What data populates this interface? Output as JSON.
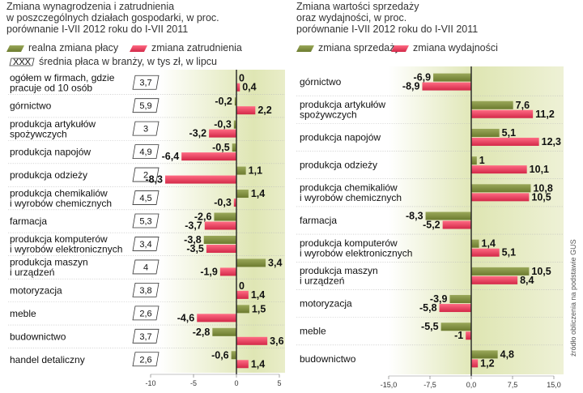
{
  "colors": {
    "green": "#7f8f3c",
    "green_light": "#c3cc8c",
    "red": "#e03b57",
    "red_light": "#f3a0b0",
    "band": "#ebefcf",
    "shade": "#dde4ad",
    "grid": "#e8e8e8"
  },
  "left_chart": {
    "title_lines": [
      "Zmiana wynagrodzenia i zatrudnienia",
      "w poszczególnych działach gospodarki, w proc.",
      "porównanie  I-VII 2012 roku do I-VII 2011"
    ],
    "legend": {
      "series1": "realna zmiana płacy",
      "series2": "zmiana zatrudnienia",
      "salary_box": "XXX",
      "salary_text": "średnia płaca w branży, w tys zł, w lipcu"
    },
    "chart_data": {
      "type": "bar",
      "orientation": "horizontal",
      "categories": [
        [
          "ogółem w firmach, gdzie",
          "pracuje od 10 osób"
        ],
        [
          "górnictwo"
        ],
        [
          "produkcja artykułów",
          "spożywczych"
        ],
        [
          "produkcja napojów"
        ],
        [
          "produkcja odzieży"
        ],
        [
          "produkcja chemikaliów",
          "i wyrobów chemicznych"
        ],
        [
          "farmacja"
        ],
        [
          "produkcja komputerów",
          "i wyrobów elektronicznych"
        ],
        [
          "produkcja maszyn",
          "i urządzeń"
        ],
        [
          "motoryzacja"
        ],
        [
          "meble"
        ],
        [
          "budownictwo"
        ],
        [
          "handel detaliczny"
        ]
      ],
      "salaries": [
        "3,7",
        "5,9",
        "3",
        "4,9",
        "2",
        "4,5",
        "5,3",
        "3,4",
        "4",
        "3,8",
        "2,6",
        "3,7",
        "2,6"
      ],
      "series": [
        {
          "name": "realna zmiana płacy",
          "values": [
            0,
            -0.2,
            -0.3,
            -0.5,
            1.1,
            1.4,
            -2.6,
            -3.8,
            3.4,
            0,
            1.5,
            -2.8,
            -0.6
          ],
          "labels": [
            "0",
            "-0,2",
            "-0,3",
            "-0,5",
            "1,1",
            "1,4",
            "-2,6",
            "-3,8",
            "3,4",
            "0",
            "1,5",
            "-2,8",
            "-0,6"
          ]
        },
        {
          "name": "zmiana zatrudnienia",
          "values": [
            0.4,
            2.2,
            -3.2,
            -6.4,
            -8.3,
            -0.3,
            -3.7,
            -3.5,
            -1.9,
            1.4,
            -4.6,
            3.6,
            1.4
          ],
          "labels": [
            "0,4",
            "2,2",
            "-3,2",
            "-6,4",
            "-8,3",
            "-0,3",
            "-3,7",
            "-3,5",
            "-1,9",
            "1,4",
            "-4,6",
            "3,6",
            "1,4"
          ]
        }
      ],
      "xlim": [
        -10,
        5
      ],
      "xticks": [
        "-10",
        "-5",
        "0",
        "5"
      ]
    }
  },
  "right_chart": {
    "title_lines": [
      "Zmiana wartości sprzedaży",
      "oraz wydajności, w proc.",
      "porównanie  I-VII 2012 roku do I-VII 2011"
    ],
    "legend": {
      "series1": "zmiana sprzedaży",
      "series2": "zmiana wydajności"
    },
    "chart_data": {
      "type": "bar",
      "orientation": "horizontal",
      "categories": [
        [
          "górnictwo"
        ],
        [
          "produkcja artykułów",
          "spożywczych"
        ],
        [
          "produkcja napojów"
        ],
        [
          "produkcja odzieży"
        ],
        [
          "produkcja chemikaliów",
          "i wyrobów chemicznych"
        ],
        [
          "farmacja"
        ],
        [
          "produkcja komputerów",
          "i wyrobów elektronicznych"
        ],
        [
          "produkcja maszyn",
          "i urządzeń"
        ],
        [
          "motoryzacja"
        ],
        [
          "meble"
        ],
        [
          "budownictwo"
        ]
      ],
      "series": [
        {
          "name": "zmiana sprzedaży",
          "values": [
            -6.9,
            7.6,
            5.1,
            1,
            10.8,
            -8.3,
            1.4,
            10.5,
            -3.9,
            -5.5,
            4.8
          ],
          "labels": [
            "-6,9",
            "7,6",
            "5,1",
            "1",
            "10,8",
            "-8,3",
            "1,4",
            "10,5",
            "-3,9",
            "-5,5",
            "4,8"
          ]
        },
        {
          "name": "zmiana wydajności",
          "values": [
            -8.9,
            11.2,
            12.3,
            10.1,
            10.5,
            -5.2,
            5.1,
            8.4,
            -5.8,
            -1,
            1.2
          ],
          "labels": [
            "-8,9",
            "11,2",
            "12,3",
            "10,1",
            "10,5",
            "-5,2",
            "5,1",
            "8,4",
            "-5,8",
            "-1",
            "1,2"
          ]
        }
      ],
      "xlim": [
        -15,
        15
      ],
      "xticks": [
        "-15,0",
        "-7,5",
        "0,0",
        "7,5",
        "15,0"
      ]
    }
  },
  "source": "źródło obliczenia na podstawie GUS"
}
